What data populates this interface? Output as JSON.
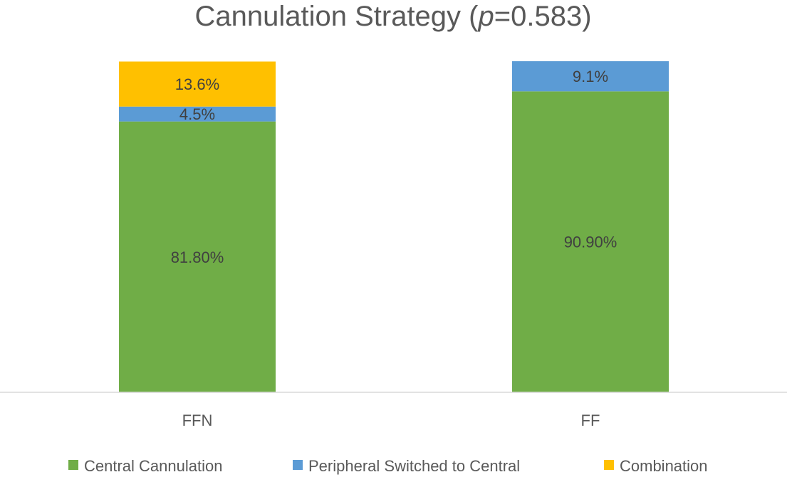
{
  "chart_data": {
    "type": "bar",
    "stacked": true,
    "title": "Cannulation Strategy",
    "title_prefix": "Cannulation Strategy (",
    "title_italic": "p",
    "title_suffix": "=0.583)",
    "categories": [
      "FFN",
      "FF"
    ],
    "series": [
      {
        "name": "Central Cannulation",
        "color": "#70AD47",
        "values": [
          81.8,
          90.9
        ],
        "labels": [
          "81.80%",
          "90.90%"
        ]
      },
      {
        "name": "Peripheral Switched to Central",
        "color": "#5B9BD5",
        "values": [
          4.5,
          9.1
        ],
        "labels": [
          "4.5%",
          "9.1%"
        ]
      },
      {
        "name": "Combination",
        "color": "#FFC000",
        "values": [
          13.6,
          0
        ],
        "labels": [
          "13.6%",
          ""
        ]
      }
    ],
    "ylim": [
      0,
      100
    ],
    "xlabel": "",
    "ylabel": "",
    "legend_position": "bottom",
    "grid": false
  }
}
